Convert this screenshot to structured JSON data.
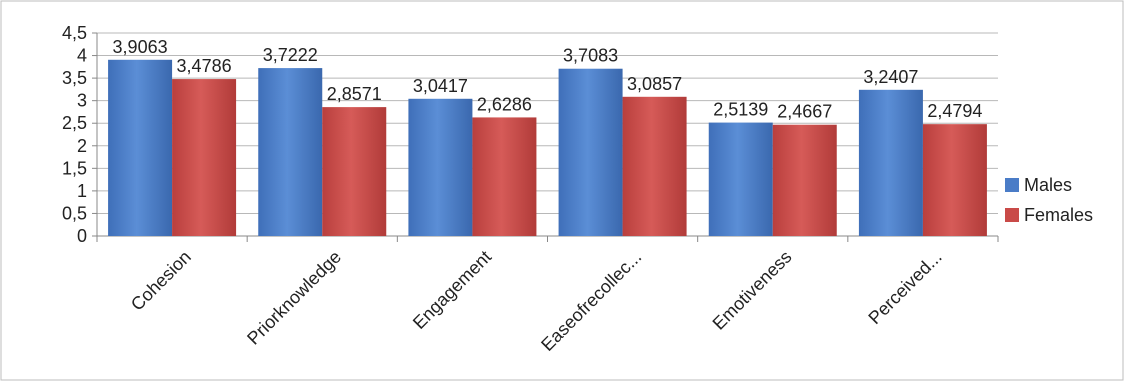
{
  "chart_data": {
    "type": "bar",
    "categories": [
      "Cohesion",
      "Priorknowledge",
      "Engagement",
      "Easeofrecollec...",
      "Emotiveness",
      "Perceived..."
    ],
    "series": [
      {
        "name": "Males",
        "values": [
          3.9063,
          3.7222,
          3.0417,
          3.7083,
          2.5139,
          3.2407
        ],
        "labels": [
          "3,9063",
          "3,7222",
          "3,0417",
          "3,7083",
          "2,5139",
          "3,2407"
        ],
        "color": "#4a7cc7"
      },
      {
        "name": "Females",
        "values": [
          3.4786,
          2.8571,
          2.6286,
          3.0857,
          2.4667,
          2.4794
        ],
        "labels": [
          "3,4786",
          "2,8571",
          "2,6286",
          "3,0857",
          "2,4667",
          "2,4794"
        ],
        "color": "#c94a48"
      }
    ],
    "ylim": [
      0,
      4.5
    ],
    "yticks": [
      "0",
      "0,5",
      "1",
      "1,5",
      "2",
      "2,5",
      "3",
      "3,5",
      "4",
      "4,5"
    ],
    "ytick_values": [
      0,
      0.5,
      1,
      1.5,
      2,
      2.5,
      3,
      3.5,
      4,
      4.5
    ],
    "grid": true,
    "legend_position": "right"
  }
}
